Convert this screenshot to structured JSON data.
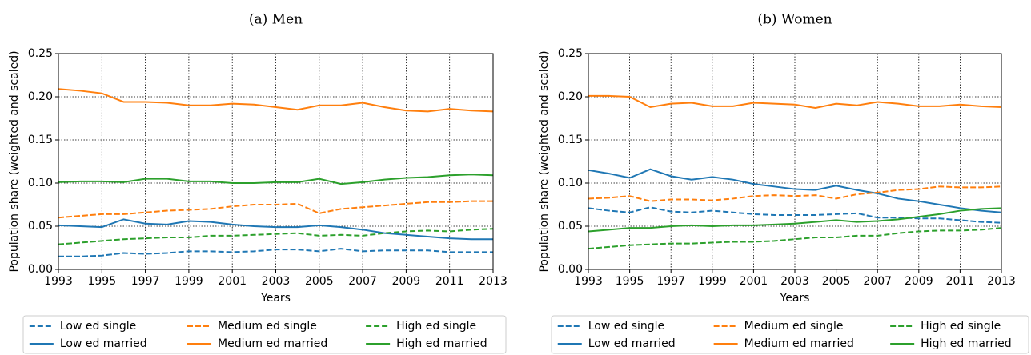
{
  "chart_data": [
    {
      "type": "line",
      "title": "(a) Men",
      "xlabel": "Years",
      "ylabel": "Population share (weighted and scaled)",
      "x": [
        1993,
        1994,
        1995,
        1996,
        1997,
        1998,
        1999,
        2000,
        2001,
        2002,
        2003,
        2004,
        2005,
        2006,
        2007,
        2008,
        2009,
        2010,
        2011,
        2012,
        2013
      ],
      "xlim": [
        1993,
        2013
      ],
      "xticks": [
        1993,
        1995,
        1997,
        1999,
        2001,
        2003,
        2005,
        2007,
        2009,
        2011,
        2013
      ],
      "ylim": [
        0,
        0.25
      ],
      "yticks": [
        {
          "value": 0,
          "label": "0.00"
        },
        0.05,
        {
          "value": 0.1,
          "label": "0.10"
        },
        0.15,
        {
          "value": 0.2,
          "label": "0.20"
        },
        0.25
      ],
      "grid": true,
      "legend": "below",
      "series": [
        {
          "name": "Low ed single",
          "color": "#1f77b4",
          "linestyle": "dashed",
          "values": [
            0.015,
            0.015,
            0.016,
            0.019,
            0.018,
            0.019,
            0.021,
            0.021,
            0.02,
            0.021,
            0.023,
            0.023,
            0.021,
            0.024,
            0.021,
            0.022,
            0.022,
            0.022,
            0.02,
            0.02,
            0.02
          ]
        },
        {
          "name": "Low ed married",
          "color": "#1f77b4",
          "linestyle": "solid",
          "values": [
            0.051,
            0.05,
            0.049,
            0.058,
            0.053,
            0.052,
            0.056,
            0.055,
            0.052,
            0.05,
            0.049,
            0.049,
            0.051,
            0.049,
            0.046,
            0.042,
            0.04,
            0.038,
            0.036,
            0.035,
            0.035
          ]
        },
        {
          "name": "Medium ed single",
          "color": "#ff7f0e",
          "linestyle": "dashed",
          "values": [
            0.06,
            0.062,
            0.064,
            0.064,
            0.066,
            0.068,
            0.069,
            0.07,
            0.073,
            0.075,
            0.075,
            0.076,
            0.065,
            0.07,
            0.072,
            0.074,
            0.076,
            0.078,
            0.078,
            0.079,
            0.079
          ]
        },
        {
          "name": "Medium ed married",
          "color": "#ff7f0e",
          "linestyle": "solid",
          "values": [
            0.209,
            0.207,
            0.204,
            0.194,
            0.194,
            0.193,
            0.19,
            0.19,
            0.192,
            0.191,
            0.188,
            0.185,
            0.19,
            0.19,
            0.193,
            0.188,
            0.184,
            0.183,
            0.186,
            0.184,
            0.183
          ]
        },
        {
          "name": "High ed single",
          "color": "#2ca02c",
          "linestyle": "dashed",
          "values": [
            0.029,
            0.031,
            0.033,
            0.035,
            0.036,
            0.037,
            0.037,
            0.039,
            0.039,
            0.04,
            0.041,
            0.042,
            0.039,
            0.04,
            0.039,
            0.042,
            0.044,
            0.045,
            0.044,
            0.046,
            0.047
          ]
        },
        {
          "name": "High ed married",
          "color": "#2ca02c",
          "linestyle": "solid",
          "values": [
            0.101,
            0.102,
            0.102,
            0.101,
            0.105,
            0.105,
            0.102,
            0.102,
            0.1,
            0.1,
            0.101,
            0.101,
            0.105,
            0.099,
            0.101,
            0.104,
            0.106,
            0.107,
            0.109,
            0.11,
            0.109
          ]
        }
      ]
    },
    {
      "type": "line",
      "title": "(b) Women",
      "xlabel": "Years",
      "ylabel": "Population share (weighted and scaled)",
      "x": [
        1993,
        1994,
        1995,
        1996,
        1997,
        1998,
        1999,
        2000,
        2001,
        2002,
        2003,
        2004,
        2005,
        2006,
        2007,
        2008,
        2009,
        2010,
        2011,
        2012,
        2013
      ],
      "xlim": [
        1993,
        2013
      ],
      "xticks": [
        1993,
        1995,
        1997,
        1999,
        2001,
        2003,
        2005,
        2007,
        2009,
        2011,
        2013
      ],
      "ylim": [
        0,
        0.25
      ],
      "yticks": [
        {
          "value": 0,
          "label": "0.00"
        },
        0.05,
        {
          "value": 0.1,
          "label": "0.10"
        },
        0.15,
        {
          "value": 0.2,
          "label": "0.20"
        },
        0.25
      ],
      "grid": true,
      "legend": "below",
      "series": [
        {
          "name": "Low ed single",
          "color": "#1f77b4",
          "linestyle": "dashed",
          "values": [
            0.071,
            0.068,
            0.066,
            0.072,
            0.067,
            0.066,
            0.068,
            0.066,
            0.064,
            0.063,
            0.063,
            0.063,
            0.064,
            0.065,
            0.06,
            0.06,
            0.059,
            0.059,
            0.057,
            0.055,
            0.054
          ]
        },
        {
          "name": "Low ed married",
          "color": "#1f77b4",
          "linestyle": "solid",
          "values": [
            0.115,
            0.111,
            0.106,
            0.116,
            0.108,
            0.104,
            0.107,
            0.104,
            0.099,
            0.096,
            0.093,
            0.092,
            0.097,
            0.092,
            0.088,
            0.082,
            0.079,
            0.075,
            0.071,
            0.068,
            0.066
          ]
        },
        {
          "name": "Medium ed single",
          "color": "#ff7f0e",
          "linestyle": "dashed",
          "values": [
            0.082,
            0.083,
            0.085,
            0.079,
            0.081,
            0.081,
            0.08,
            0.082,
            0.085,
            0.086,
            0.085,
            0.086,
            0.082,
            0.087,
            0.089,
            0.092,
            0.093,
            0.096,
            0.095,
            0.095,
            0.096
          ]
        },
        {
          "name": "Medium ed married",
          "color": "#ff7f0e",
          "linestyle": "solid",
          "values": [
            0.201,
            0.201,
            0.2,
            0.188,
            0.192,
            0.193,
            0.189,
            0.189,
            0.193,
            0.192,
            0.191,
            0.187,
            0.192,
            0.19,
            0.194,
            0.192,
            0.189,
            0.189,
            0.191,
            0.189,
            0.188
          ]
        },
        {
          "name": "High ed single",
          "color": "#2ca02c",
          "linestyle": "dashed",
          "values": [
            0.024,
            0.026,
            0.028,
            0.029,
            0.03,
            0.03,
            0.031,
            0.032,
            0.032,
            0.033,
            0.035,
            0.037,
            0.037,
            0.039,
            0.039,
            0.042,
            0.044,
            0.045,
            0.045,
            0.046,
            0.048
          ]
        },
        {
          "name": "High ed married",
          "color": "#2ca02c",
          "linestyle": "solid",
          "values": [
            0.044,
            0.046,
            0.048,
            0.048,
            0.05,
            0.051,
            0.05,
            0.051,
            0.051,
            0.052,
            0.053,
            0.055,
            0.057,
            0.055,
            0.056,
            0.058,
            0.061,
            0.064,
            0.068,
            0.07,
            0.071
          ]
        }
      ]
    }
  ]
}
